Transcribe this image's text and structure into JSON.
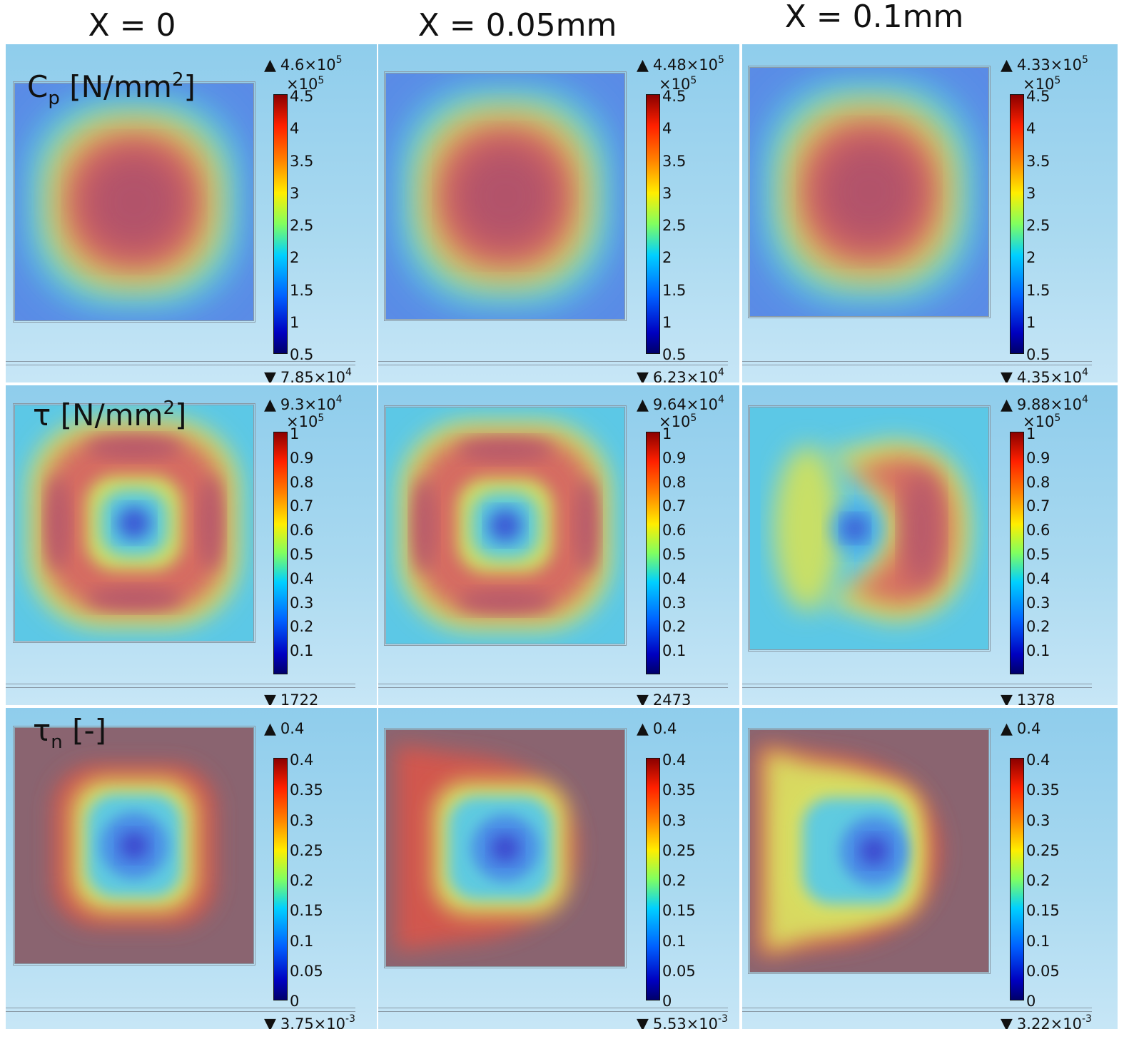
{
  "chart_data": {
    "type": "heatmap",
    "columns": [
      {
        "title": "X = 0"
      },
      {
        "title": "X = 0.05mm"
      },
      {
        "title": "X = 0.1mm"
      }
    ],
    "rows": [
      {
        "label_main": "C",
        "label_sub": "p",
        "label_unit": " [N/mm",
        "label_sup": "2",
        "label_end": "]",
        "multiplier_base": "×10",
        "multiplier_exp": "5",
        "ticks": [
          "4.5",
          "4",
          "3.5",
          "3",
          "2.5",
          "2",
          "1.5",
          "1",
          "0.5"
        ],
        "panels": [
          {
            "max_base": "4.6×10",
            "max_exp": "5",
            "min_base": "7.85×10",
            "min_exp": "4",
            "pattern": "cp"
          },
          {
            "max_base": "4.48×10",
            "max_exp": "5",
            "min_base": "6.23×10",
            "min_exp": "4",
            "pattern": "cp"
          },
          {
            "max_base": "4.33×10",
            "max_exp": "5",
            "min_base": "4.35×10",
            "min_exp": "4",
            "pattern": "cp"
          }
        ]
      },
      {
        "label_main": "τ",
        "label_sub": "",
        "label_unit": " [N/mm",
        "label_sup": "2",
        "label_end": "]",
        "multiplier_base": "×10",
        "multiplier_exp": "5",
        "ticks": [
          "1",
          "0.9",
          "0.8",
          "0.7",
          "0.6",
          "0.5",
          "0.4",
          "0.3",
          "0.2",
          "0.1"
        ],
        "panels": [
          {
            "max_base": "9.3×10",
            "max_exp": "4",
            "min_base": "1722",
            "min_exp": "",
            "pattern": "tau0"
          },
          {
            "max_base": "9.64×10",
            "max_exp": "4",
            "min_base": "2473",
            "min_exp": "",
            "pattern": "tau1"
          },
          {
            "max_base": "9.88×10",
            "max_exp": "4",
            "min_base": "1378",
            "min_exp": "",
            "pattern": "tau2"
          }
        ]
      },
      {
        "label_main": "τ",
        "label_sub": "n",
        "label_unit": " [-]",
        "label_sup": "",
        "label_end": "",
        "multiplier_base": "",
        "multiplier_exp": "",
        "ticks": [
          "0.4",
          "0.35",
          "0.3",
          "0.25",
          "0.2",
          "0.15",
          "0.1",
          "0.05",
          "0"
        ],
        "panels": [
          {
            "max_base": "0.4",
            "max_exp": "",
            "min_base": "3.75×10",
            "min_exp": "-3",
            "pattern": "tn0"
          },
          {
            "max_base": "0.4",
            "max_exp": "",
            "min_base": "5.53×10",
            "min_exp": "-3",
            "pattern": "tn1"
          },
          {
            "max_base": "0.4",
            "max_exp": "",
            "min_base": "3.22×10",
            "min_exp": "-3",
            "pattern": "tn2"
          }
        ]
      }
    ]
  }
}
